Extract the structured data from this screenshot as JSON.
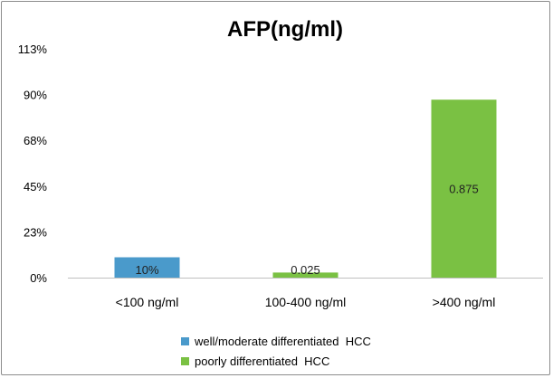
{
  "chart_data": {
    "type": "bar",
    "title": "AFP(ng/ml)",
    "xlabel": "",
    "ylabel": "",
    "categories": [
      "<100 ng/ml",
      "100-400 ng/ml",
      ">400 ng/ml"
    ],
    "ylim": [
      0,
      1.125
    ],
    "yticks": [
      {
        "value": 0,
        "label": "0%"
      },
      {
        "value": 0.225,
        "label": "23%"
      },
      {
        "value": 0.45,
        "label": "45%"
      },
      {
        "value": 0.675,
        "label": "68%"
      },
      {
        "value": 0.9,
        "label": "90%"
      },
      {
        "value": 1.125,
        "label": "113%"
      }
    ],
    "grid": false,
    "legend_position": "bottom",
    "series": [
      {
        "name": "well/moderate differentiated  HCC",
        "color": "#4a9acb",
        "values": [
          0.1,
          null,
          null
        ],
        "data_labels": [
          "10%",
          "",
          ""
        ]
      },
      {
        "name": "poorly differentiated  HCC",
        "color": "#7ac143",
        "values": [
          null,
          0.025,
          0.875
        ],
        "data_labels": [
          "",
          "0.025",
          "0.875"
        ]
      }
    ]
  }
}
